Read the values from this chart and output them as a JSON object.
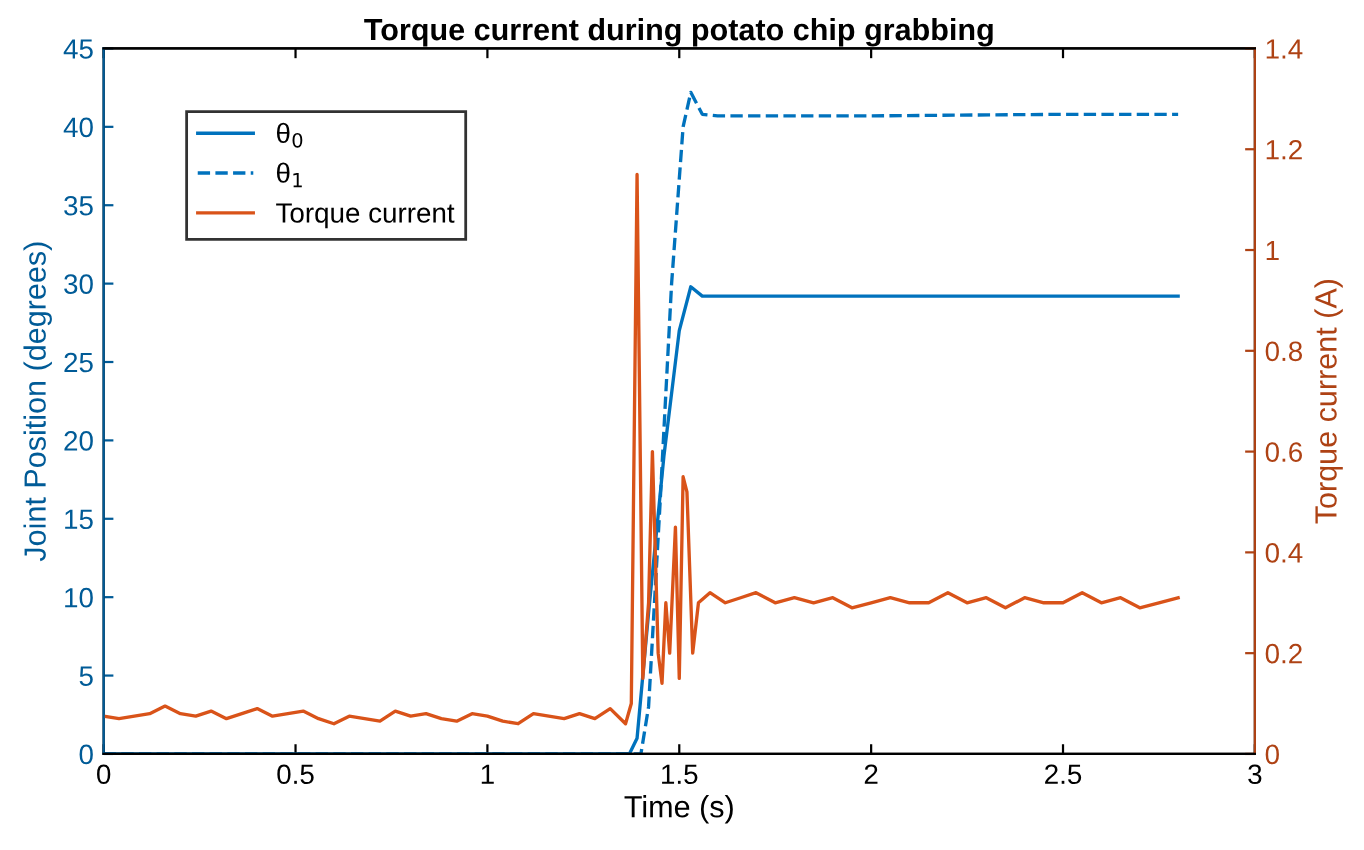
{
  "chart_data": {
    "type": "line",
    "title": "Torque current during potato chip grabbing",
    "xlabel": "Time (s)",
    "ylabel": "Joint Position (degrees)",
    "y2label": "Torque current (A)",
    "xlim": [
      0,
      3
    ],
    "xticks": [
      0,
      0.5,
      1,
      1.5,
      2,
      2.5,
      3
    ],
    "ylim": [
      0,
      45
    ],
    "yticks": [
      0,
      5,
      10,
      15,
      20,
      25,
      30,
      35,
      40,
      45
    ],
    "y2lim": [
      0,
      1.4
    ],
    "y2ticks": [
      0,
      0.2,
      0.4,
      0.6,
      0.8,
      1,
      1.2,
      1.4
    ],
    "legend": "top left",
    "grid": false,
    "series": [
      {
        "name": "θ$_{0}$",
        "color": "#0072bd",
        "line_style": "solid",
        "x": [
          0,
          1.37,
          1.39,
          1.42,
          1.46,
          1.5,
          1.53,
          1.56,
          1.6,
          2.0,
          2.5,
          2.8
        ],
        "values": [
          0,
          0,
          1,
          9,
          19,
          27,
          29.8,
          29.2,
          29.2,
          29.2,
          29.2,
          29.2
        ]
      },
      {
        "name": "θ$_{1}$",
        "color": "#0072bd",
        "line_style": "dashed",
        "x": [
          0,
          1.4,
          1.42,
          1.45,
          1.48,
          1.51,
          1.53,
          1.56,
          1.6,
          2.0,
          2.5,
          2.8
        ],
        "values": [
          0,
          0,
          3,
          16,
          30,
          40,
          42.2,
          40.8,
          40.7,
          40.7,
          40.8,
          40.8
        ]
      },
      {
        "name": "Torque current",
        "color": "#d95319",
        "line_style": "solid",
        "axis": "y2",
        "x": [
          0,
          0.04,
          0.08,
          0.12,
          0.16,
          0.2,
          0.24,
          0.28,
          0.32,
          0.36,
          0.4,
          0.44,
          0.48,
          0.52,
          0.56,
          0.6,
          0.64,
          0.68,
          0.72,
          0.76,
          0.8,
          0.84,
          0.88,
          0.92,
          0.96,
          1.0,
          1.04,
          1.08,
          1.12,
          1.16,
          1.2,
          1.24,
          1.28,
          1.32,
          1.36,
          1.375,
          1.39,
          1.405,
          1.42,
          1.43,
          1.445,
          1.455,
          1.465,
          1.475,
          1.49,
          1.5,
          1.51,
          1.52,
          1.535,
          1.55,
          1.58,
          1.62,
          1.66,
          1.7,
          1.75,
          1.8,
          1.85,
          1.9,
          1.95,
          2.0,
          2.05,
          2.1,
          2.15,
          2.2,
          2.25,
          2.3,
          2.35,
          2.4,
          2.45,
          2.5,
          2.55,
          2.6,
          2.65,
          2.7,
          2.75,
          2.8
        ],
        "values": [
          0.075,
          0.07,
          0.075,
          0.08,
          0.095,
          0.08,
          0.075,
          0.085,
          0.07,
          0.08,
          0.09,
          0.075,
          0.08,
          0.085,
          0.07,
          0.06,
          0.075,
          0.07,
          0.065,
          0.085,
          0.075,
          0.08,
          0.07,
          0.065,
          0.08,
          0.075,
          0.065,
          0.06,
          0.08,
          0.075,
          0.07,
          0.08,
          0.07,
          0.09,
          0.06,
          0.1,
          1.15,
          0.15,
          0.3,
          0.6,
          0.2,
          0.14,
          0.3,
          0.2,
          0.45,
          0.15,
          0.55,
          0.52,
          0.2,
          0.3,
          0.32,
          0.3,
          0.31,
          0.32,
          0.3,
          0.31,
          0.3,
          0.31,
          0.29,
          0.3,
          0.31,
          0.3,
          0.3,
          0.32,
          0.3,
          0.31,
          0.29,
          0.31,
          0.3,
          0.3,
          0.32,
          0.3,
          0.31,
          0.29,
          0.3,
          0.31
        ]
      }
    ]
  }
}
